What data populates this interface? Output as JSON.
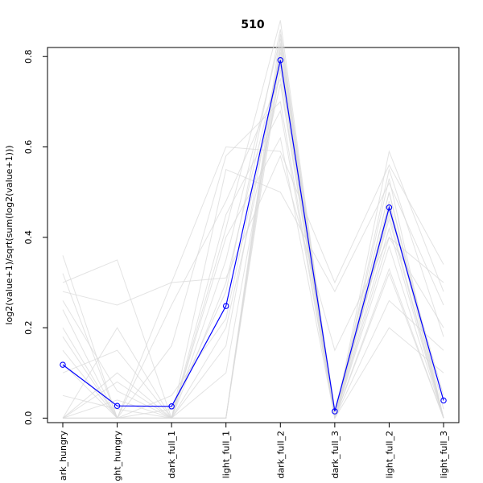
{
  "chart_data": {
    "type": "line",
    "title": "510",
    "xlabel": "",
    "ylabel": "log2(value+1)/sqrt(sum(log2(value+1)))",
    "categories": [
      "dark_hungry",
      "light_hungry",
      "dark_full_1",
      "light_full_1",
      "dark_full_2",
      "dark_full_3",
      "light_full_2",
      "light_full_3"
    ],
    "category_labels_shown": [
      "ark_hungry",
      "ght_hungry",
      "dark_full_1",
      "light_full_1",
      "dark_full_2",
      "dark_full_3",
      "light_full_2",
      "light_full_3"
    ],
    "ylim": [
      -0.01,
      0.82
    ],
    "yticks": [
      0.0,
      0.2,
      0.4,
      0.6,
      0.8
    ],
    "ytick_labels": [
      "0.0",
      "0.2",
      "0.4",
      "0.6",
      "0.8"
    ],
    "grid": false,
    "legend": "none",
    "highlight": {
      "color": "#0000ff",
      "marker": "open-circle",
      "values": [
        0.118,
        0.027,
        0.026,
        0.248,
        0.792,
        0.015,
        0.466,
        0.039
      ]
    },
    "background_series": {
      "color": "#d9d9d9",
      "values": [
        [
          0.0,
          0.0,
          0.0,
          0.0,
          0.85,
          0.0,
          0.5,
          0.0
        ],
        [
          0.32,
          0.0,
          0.0,
          0.0,
          0.8,
          0.0,
          0.45,
          0.0
        ],
        [
          0.36,
          0.0,
          0.3,
          0.31,
          0.58,
          0.15,
          0.4,
          0.3
        ],
        [
          0.3,
          0.35,
          0.0,
          0.0,
          0.82,
          0.0,
          0.48,
          0.0
        ],
        [
          0.0,
          0.2,
          0.0,
          0.0,
          0.78,
          0.0,
          0.42,
          0.0
        ],
        [
          0.28,
          0.25,
          0.3,
          0.6,
          0.59,
          0.3,
          0.56,
          0.34
        ],
        [
          0.1,
          0.15,
          0.0,
          0.55,
          0.5,
          0.28,
          0.52,
          0.25
        ],
        [
          0.24,
          0.0,
          0.16,
          0.58,
          0.7,
          0.0,
          0.59,
          0.28
        ],
        [
          0.0,
          0.08,
          0.0,
          0.42,
          0.88,
          0.0,
          0.53,
          0.0
        ],
        [
          0.2,
          0.0,
          0.0,
          0.16,
          0.81,
          0.0,
          0.33,
          0.0
        ],
        [
          0.0,
          0.0,
          0.25,
          0.48,
          0.75,
          0.0,
          0.38,
          0.0
        ],
        [
          0.18,
          0.0,
          0.0,
          0.35,
          0.84,
          0.0,
          0.47,
          0.05
        ],
        [
          0.0,
          0.1,
          0.0,
          0.3,
          0.8,
          0.02,
          0.44,
          0.0
        ],
        [
          0.12,
          0.0,
          0.05,
          0.22,
          0.79,
          0.0,
          0.46,
          0.04
        ],
        [
          0.05,
          0.02,
          0.0,
          0.4,
          0.62,
          0.0,
          0.4,
          0.2
        ],
        [
          0.0,
          0.0,
          0.0,
          0.0,
          0.83,
          0.0,
          0.32,
          0.0
        ],
        [
          0.26,
          0.06,
          0.0,
          0.1,
          0.77,
          0.0,
          0.26,
          0.15
        ],
        [
          0.0,
          0.0,
          0.0,
          0.2,
          0.74,
          0.0,
          0.2,
          0.1
        ],
        [
          0.15,
          0.0,
          0.02,
          0.28,
          0.86,
          0.0,
          0.5,
          0.02
        ],
        [
          0.0,
          0.04,
          0.0,
          0.45,
          0.68,
          0.0,
          0.55,
          0.18
        ]
      ]
    }
  }
}
